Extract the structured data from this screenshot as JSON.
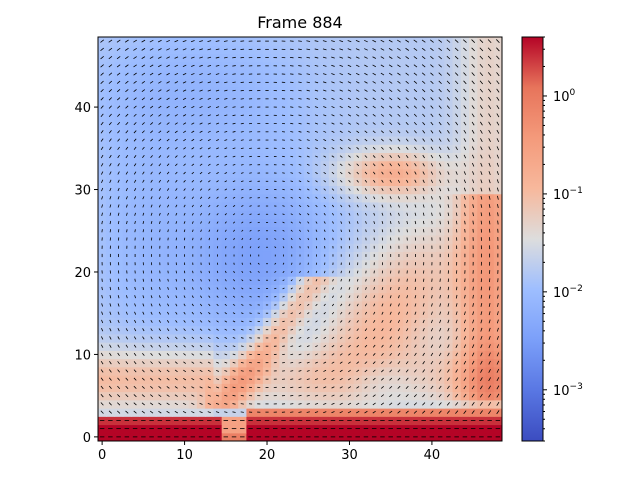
{
  "chart_data": {
    "type": "heatmap",
    "title": "Frame 884",
    "xlabel": "",
    "ylabel": "",
    "xlim": [
      -0.5,
      48.5
    ],
    "ylim": [
      -0.5,
      48.5
    ],
    "x_ticks": [
      0,
      10,
      20,
      30,
      40
    ],
    "x_tick_labels": [
      "0",
      "10",
      "20",
      "30",
      "40"
    ],
    "y_ticks": [
      0,
      10,
      20,
      30,
      40
    ],
    "y_tick_labels": [
      "0",
      "10",
      "20",
      "30",
      "40"
    ],
    "grid_size": [
      49,
      49
    ],
    "colormap": "coolwarm",
    "color_scale": "log",
    "color_range": [
      0.0003,
      4.0
    ],
    "colorbar": {
      "ticks": [
        0.001,
        0.01,
        0.1,
        1
      ],
      "tick_labels": [
        {
          "base": "10",
          "exp": "−3"
        },
        {
          "base": "10",
          "exp": "−2"
        },
        {
          "base": "10",
          "exp": "−1"
        },
        {
          "base": "10",
          "exp": "0"
        }
      ]
    },
    "overlay": "quiver (velocity arrows on every grid cell)",
    "colors": {
      "low": "#3b4cc0",
      "mid": "#dddddd",
      "high": "#b40426",
      "arrows": "#000000"
    }
  }
}
